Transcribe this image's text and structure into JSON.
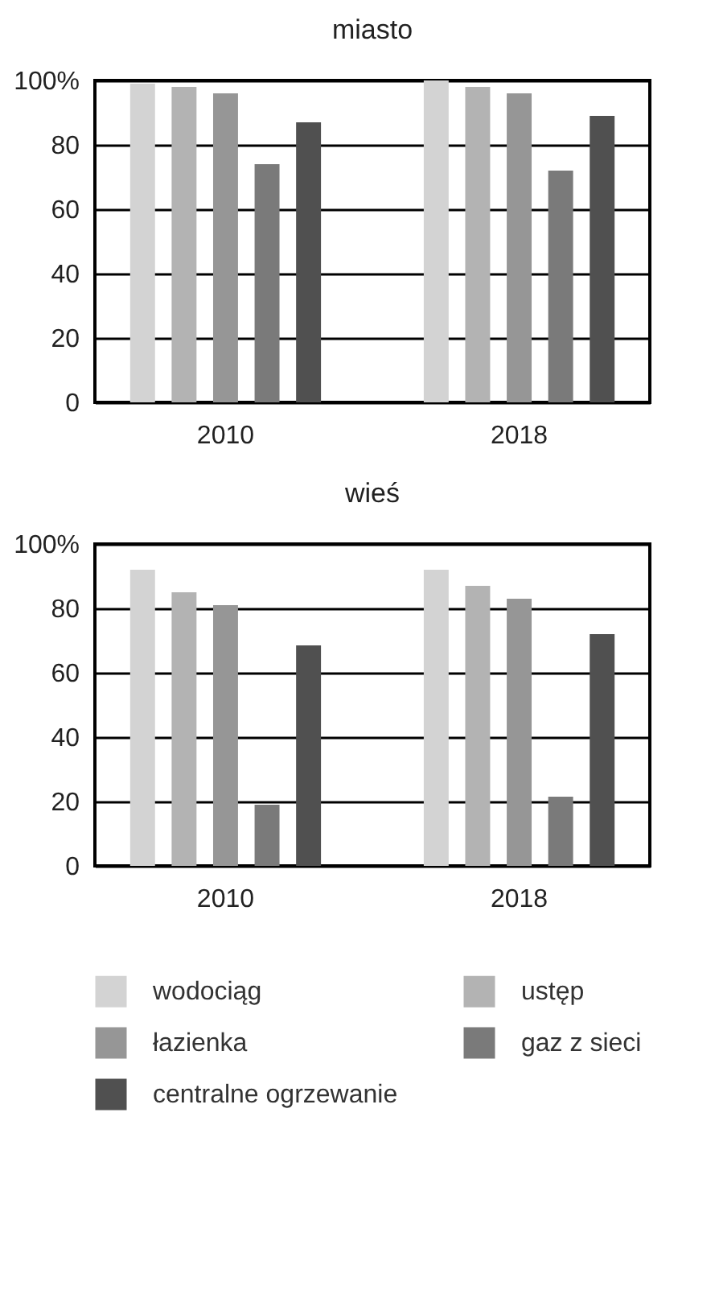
{
  "chart_data": [
    {
      "type": "bar",
      "title": "miasto",
      "categories": [
        "2010",
        "2018"
      ],
      "series": [
        {
          "color": "#d3d3d3",
          "values": [
            99,
            100
          ]
        },
        {
          "color": "#b3b3b3",
          "values": [
            98,
            98
          ]
        },
        {
          "color": "#969696",
          "values": [
            96,
            96
          ]
        },
        {
          "color": "#7a7a7a",
          "values": [
            74,
            72
          ]
        },
        {
          "color": "#505050",
          "values": [
            87,
            89
          ]
        }
      ],
      "ylim": [
        0,
        100
      ],
      "yticks": [
        0,
        20,
        40,
        60,
        80,
        {
          "value": 100,
          "label": "100%"
        }
      ],
      "grid": "y"
    },
    {
      "type": "bar",
      "title": "wieś",
      "categories": [
        "2010",
        "2018"
      ],
      "series": [
        {
          "name": "wodociąg",
          "color": "#d3d3d3",
          "values": [
            92,
            92
          ]
        },
        {
          "name": "ustęp",
          "color": "#b3b3b3",
          "values": [
            85,
            87
          ]
        },
        {
          "name": "łazienka",
          "color": "#969696",
          "values": [
            81,
            83
          ]
        },
        {
          "name": "gaz z sieci",
          "color": "#7a7a7a",
          "values": [
            19,
            21.5
          ]
        },
        {
          "name": "centralne ogrzewanie",
          "color": "#505050",
          "values": [
            68.5,
            72
          ]
        }
      ],
      "ylim": [
        0,
        100
      ],
      "yticks": [
        0,
        20,
        40,
        60,
        80,
        {
          "value": 100,
          "label": "100%"
        }
      ],
      "grid": "y",
      "legend": "bottom"
    }
  ]
}
